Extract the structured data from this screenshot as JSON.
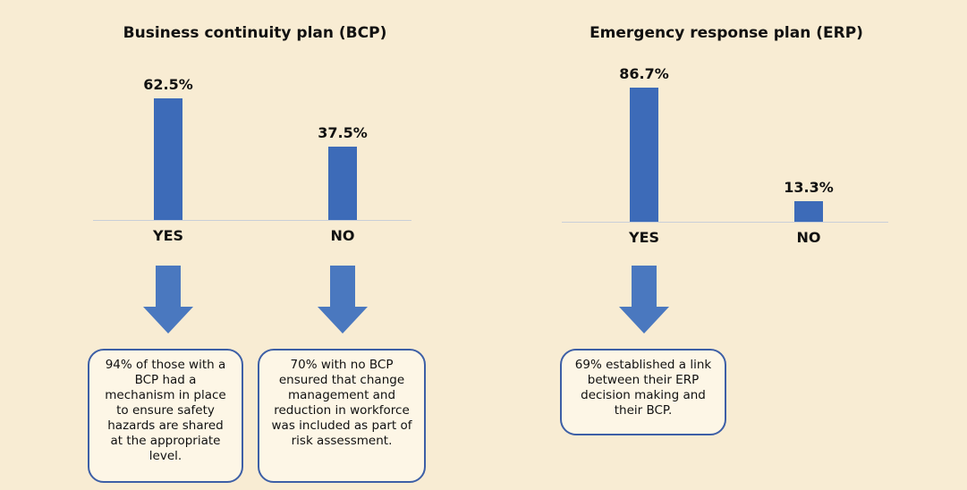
{
  "chart_data": [
    {
      "type": "bar",
      "title": "Business continuity plan (BCP)",
      "categories": [
        "YES",
        "NO"
      ],
      "values": [
        62.5,
        37.5
      ],
      "value_labels": [
        "62.5%",
        "37.5%"
      ],
      "color": "#3d6bb8",
      "annotations": [
        "94% of those with a BCP had a mechanism in place to ensure safety hazards are shared at the appropriate level.",
        "70% with no BCP ensured that change management and reduction in workforce was included as part of risk assessment."
      ]
    },
    {
      "type": "bar",
      "title": "Emergency response plan (ERP)",
      "categories": [
        "YES",
        "NO"
      ],
      "values": [
        86.7,
        13.3
      ],
      "value_labels": [
        "86.7%",
        "13.3%"
      ],
      "color": "#3d6bb8",
      "annotations": [
        "69% established a link between their ERP decision making and their BCP."
      ]
    }
  ]
}
